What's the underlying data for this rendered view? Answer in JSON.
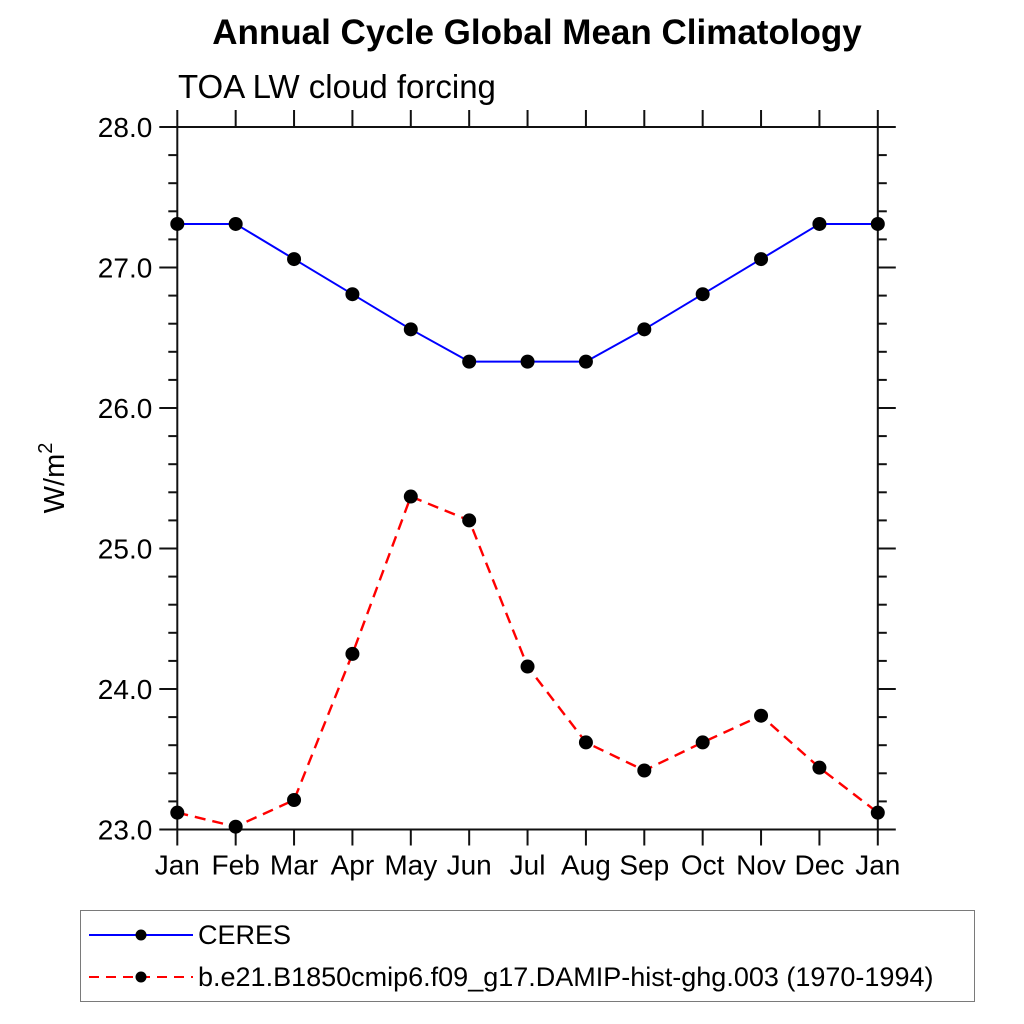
{
  "chart_data": {
    "type": "line",
    "title": "Annual Cycle Global Mean Climatology",
    "subtitle": "TOA LW cloud forcing",
    "xlabel": "",
    "ylabel": "W/m²",
    "categories": [
      "Jan",
      "Feb",
      "Mar",
      "Apr",
      "May",
      "Jun",
      "Jul",
      "Aug",
      "Sep",
      "Oct",
      "Nov",
      "Dec",
      "Jan"
    ],
    "ylim": [
      23.0,
      28.0
    ],
    "ytick_labels": [
      "23.0",
      "24.0",
      "25.0",
      "26.0",
      "27.0",
      "28.0"
    ],
    "ytick_major_step": 1.0,
    "ytick_minor_step": 0.2,
    "grid": false,
    "legend_position": "bottom-left",
    "series": [
      {
        "name": "CERES",
        "color": "#0000ff",
        "line_style": "solid",
        "marker": "circle",
        "marker_color": "#000000",
        "values": [
          27.31,
          27.31,
          27.06,
          26.81,
          26.56,
          26.33,
          26.33,
          26.33,
          26.56,
          26.81,
          27.06,
          27.31,
          27.31
        ]
      },
      {
        "name": "b.e21.B1850cmip6.f09_g17.DAMIP-hist-ghg.003 (1970-1994)",
        "color": "#ff0000",
        "line_style": "dashed",
        "marker": "circle",
        "marker_color": "#000000",
        "values": [
          23.12,
          23.02,
          23.21,
          24.25,
          25.37,
          25.2,
          24.16,
          23.62,
          23.42,
          23.62,
          23.81,
          23.44,
          23.12
        ]
      }
    ]
  }
}
